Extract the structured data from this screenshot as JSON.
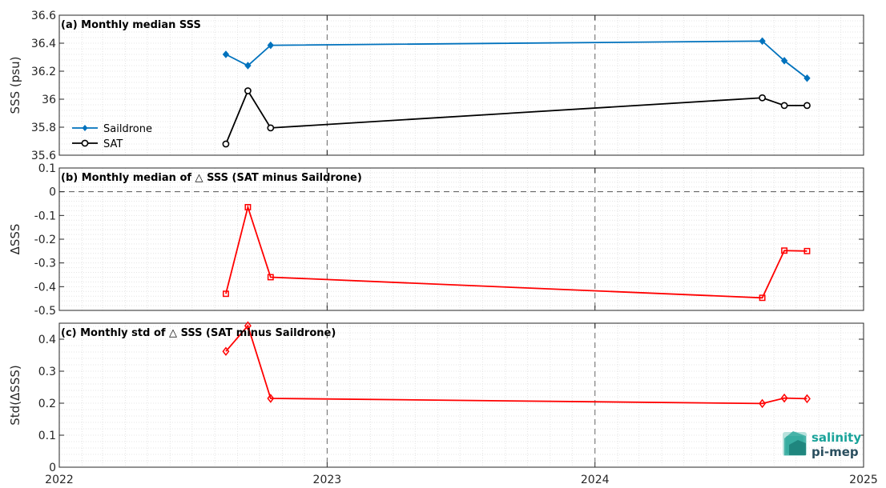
{
  "x_axis": {
    "ticks": [
      "2022",
      "2023",
      "2024",
      "2025"
    ],
    "xlim": [
      "2022-01-01",
      "2025-01-01"
    ]
  },
  "panels": [
    {
      "title": "(a) Monthly median SSS",
      "ylabel": "SSS (psu)",
      "ylim": [
        35.6,
        36.6
      ],
      "ticks": [
        35.6,
        35.8,
        36,
        36.2,
        36.4,
        36.6
      ],
      "tick_labels": [
        "35.6",
        "35.8",
        "36",
        "36.2",
        "36.4",
        "36.6"
      ],
      "legend_position": "lower-left"
    },
    {
      "title": "(b) Monthly median of △ SSS (SAT minus Saildrone)",
      "ylabel": "ΔSSS",
      "ylim": [
        -0.5,
        0.1
      ],
      "ticks": [
        -0.5,
        -0.4,
        -0.3,
        -0.2,
        -0.1,
        0,
        0.1
      ],
      "tick_labels": [
        "-0.5",
        "-0.4",
        "-0.3",
        "-0.2",
        "-0.1",
        "0",
        "0.1"
      ],
      "zero_line": true
    },
    {
      "title": "(c) Monthly std of △ SSS (SAT minus Saildrone)",
      "ylabel": "Std(ΔSSS)",
      "ylim": [
        0,
        0.45
      ],
      "ticks": [
        0,
        0.1,
        0.2,
        0.3,
        0.4
      ],
      "tick_labels": [
        "0",
        "0.1",
        "0.2",
        "0.3",
        "0.4"
      ]
    }
  ],
  "chart_data": [
    {
      "type": "line",
      "title": "(a) Monthly median SSS",
      "xlabel": "",
      "ylabel": "SSS (psu)",
      "x": [
        "2022-08-16",
        "2022-09-15",
        "2022-10-16",
        "2024-08-16",
        "2024-09-15",
        "2024-10-16"
      ],
      "series": [
        {
          "name": "Saildrone",
          "color": "#0072BD",
          "marker": "filled-diamond",
          "values": [
            36.32,
            36.24,
            36.385,
            36.415,
            36.275,
            36.15
          ]
        },
        {
          "name": "SAT",
          "color": "#000000",
          "marker": "circle",
          "values": [
            35.68,
            36.06,
            35.795,
            36.01,
            35.955,
            35.955
          ]
        }
      ],
      "ylim": [
        35.6,
        36.6
      ],
      "grid": true,
      "legend": "lower-left"
    },
    {
      "type": "line",
      "title": "(b) Monthly median of △ SSS (SAT minus Saildrone)",
      "xlabel": "",
      "ylabel": "ΔSSS",
      "x": [
        "2022-08-16",
        "2022-09-15",
        "2022-10-16",
        "2024-08-16",
        "2024-09-15",
        "2024-10-16"
      ],
      "series": [
        {
          "color": "#FF0000",
          "marker": "square",
          "values": [
            -0.43,
            -0.065,
            -0.36,
            -0.447,
            -0.248,
            -0.25
          ]
        }
      ],
      "ylim": [
        -0.5,
        0.1
      ],
      "grid": true
    },
    {
      "type": "line",
      "title": "(c) Monthly std of △ SSS (SAT minus Saildrone)",
      "xlabel": "",
      "ylabel": "Std(ΔSSS)",
      "x": [
        "2022-08-16",
        "2022-09-15",
        "2022-10-16",
        "2024-08-16",
        "2024-09-15",
        "2024-10-16"
      ],
      "series": [
        {
          "color": "#FF0000",
          "marker": "diamond",
          "values": [
            0.362,
            0.442,
            0.215,
            0.199,
            0.216,
            0.214
          ]
        }
      ],
      "ylim": [
        0,
        0.45
      ],
      "grid": true
    }
  ],
  "logo": {
    "line1": "salinity",
    "line2": "pi-mep"
  },
  "colors": {
    "saildrone": "#0072BD",
    "sat": "#000000",
    "delta": "#FF0000",
    "logo_accent": "#1aa39a"
  }
}
